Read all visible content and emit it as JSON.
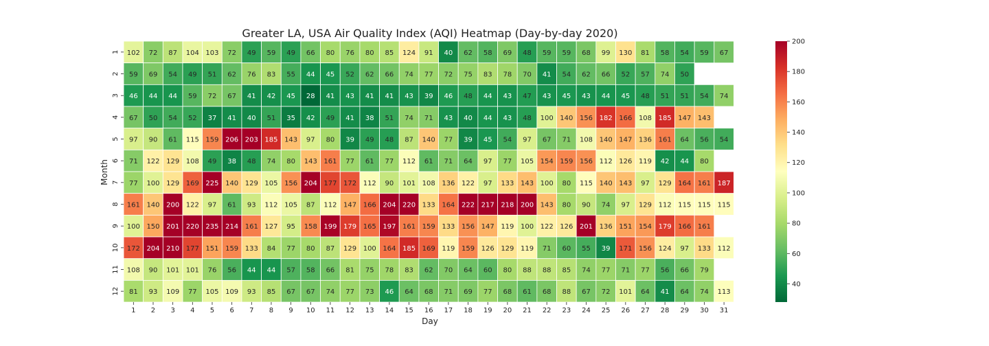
{
  "chart_data": {
    "type": "heatmap",
    "title": "Greater LA, USA Air Quality Index (AQI) Heatmap (Day-by-day 2020)",
    "xlabel": "Day",
    "ylabel": "Month",
    "x": [
      1,
      2,
      3,
      4,
      5,
      6,
      7,
      8,
      9,
      10,
      11,
      12,
      13,
      14,
      15,
      16,
      17,
      18,
      19,
      20,
      21,
      22,
      23,
      24,
      25,
      26,
      27,
      28,
      29,
      30,
      31
    ],
    "y": [
      1,
      2,
      3,
      4,
      5,
      6,
      7,
      8,
      9,
      10,
      11,
      12
    ],
    "values": [
      [
        102,
        72,
        87,
        104,
        103,
        72,
        49,
        59,
        49,
        66,
        80,
        76,
        80,
        85,
        124,
        91,
        40,
        62,
        58,
        69,
        48,
        59,
        59,
        68,
        99,
        130,
        81,
        58,
        54,
        59,
        67
      ],
      [
        59,
        69,
        54,
        49,
        51,
        62,
        76,
        83,
        55,
        44,
        45,
        52,
        62,
        66,
        74,
        77,
        72,
        75,
        83,
        78,
        70,
        41,
        54,
        62,
        66,
        52,
        57,
        74,
        50,
        null,
        null
      ],
      [
        46,
        44,
        44,
        59,
        72,
        67,
        41,
        42,
        45,
        28,
        41,
        43,
        41,
        41,
        43,
        39,
        46,
        48,
        44,
        43,
        47,
        43,
        45,
        43,
        44,
        45,
        48,
        51,
        51,
        54,
        74
      ],
      [
        67,
        50,
        54,
        52,
        37,
        41,
        40,
        51,
        35,
        42,
        49,
        41,
        38,
        51,
        74,
        71,
        43,
        40,
        44,
        43,
        48,
        100,
        140,
        156,
        182,
        166,
        108,
        185,
        147,
        143,
        null
      ],
      [
        97,
        90,
        61,
        115,
        159,
        206,
        203,
        185,
        143,
        97,
        80,
        39,
        49,
        48,
        87,
        140,
        77,
        39,
        45,
        54,
        97,
        67,
        71,
        108,
        140,
        147,
        136,
        161,
        64,
        56,
        54
      ],
      [
        71,
        122,
        129,
        108,
        49,
        38,
        48,
        74,
        80,
        143,
        161,
        77,
        61,
        77,
        112,
        61,
        71,
        64,
        97,
        77,
        105,
        154,
        159,
        156,
        112,
        126,
        119,
        42,
        44,
        80,
        null
      ],
      [
        77,
        100,
        129,
        169,
        225,
        140,
        129,
        105,
        156,
        204,
        177,
        172,
        112,
        90,
        101,
        108,
        136,
        122,
        97,
        133,
        143,
        100,
        80,
        115,
        140,
        143,
        97,
        129,
        164,
        161,
        187
      ],
      [
        161,
        140,
        200,
        122,
        97,
        61,
        93,
        112,
        105,
        87,
        112,
        147,
        166,
        204,
        220,
        133,
        164,
        222,
        217,
        218,
        200,
        143,
        80,
        90,
        74,
        97,
        129,
        112,
        115,
        115,
        115
      ],
      [
        100,
        150,
        201,
        220,
        235,
        214,
        161,
        127,
        95,
        158,
        199,
        179,
        165,
        197,
        161,
        159,
        133,
        156,
        147,
        119,
        100,
        122,
        126,
        201,
        136,
        151,
        154,
        179,
        166,
        161,
        null
      ],
      [
        172,
        204,
        210,
        177,
        151,
        159,
        133,
        84,
        77,
        80,
        87,
        129,
        100,
        164,
        185,
        169,
        119,
        159,
        126,
        129,
        119,
        71,
        60,
        55,
        39,
        171,
        156,
        124,
        97,
        133,
        112
      ],
      [
        108,
        90,
        101,
        101,
        76,
        56,
        44,
        44,
        57,
        58,
        66,
        81,
        75,
        78,
        83,
        62,
        70,
        64,
        60,
        80,
        88,
        88,
        85,
        74,
        77,
        71,
        77,
        56,
        66,
        79,
        null
      ],
      [
        81,
        93,
        109,
        77,
        105,
        109,
        93,
        85,
        67,
        67,
        74,
        77,
        73,
        46,
        64,
        68,
        71,
        69,
        77,
        68,
        61,
        68,
        88,
        67,
        72,
        101,
        64,
        41,
        64,
        74,
        113
      ]
    ],
    "colormap": "RdYlGn_r",
    "vmin": 28,
    "vmax": 200,
    "colorbar_ticks": [
      40,
      60,
      80,
      100,
      120,
      140,
      160,
      180,
      200
    ]
  }
}
